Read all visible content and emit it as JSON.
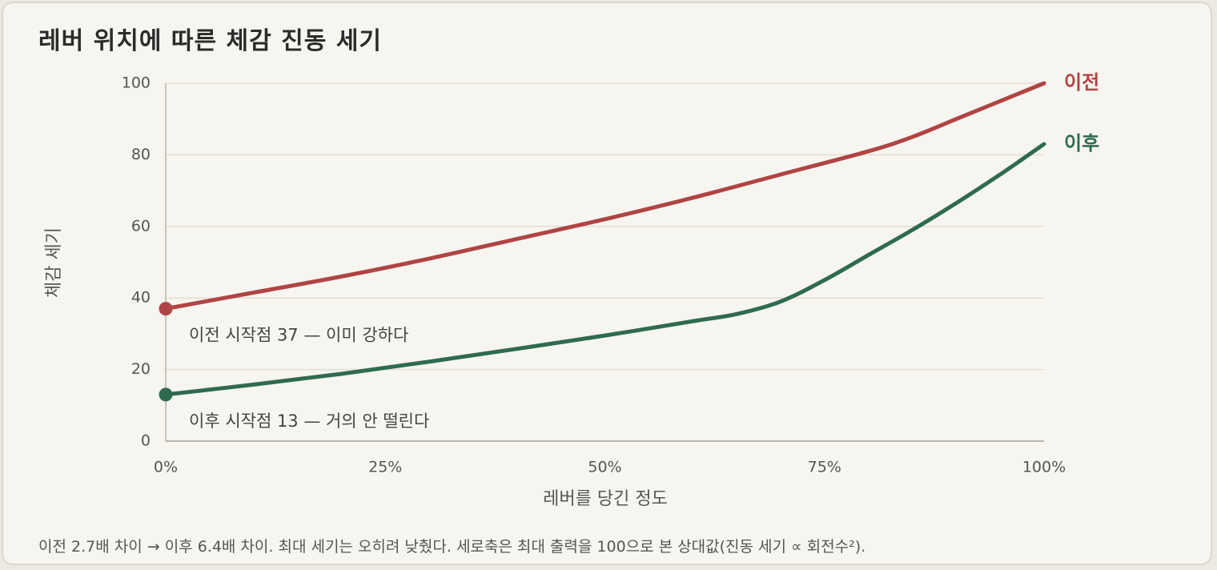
{
  "chart_data": {
    "type": "line",
    "title": "레버 위치에 따른 체감 진동 세기",
    "xlabel": "레버를 당긴 정도",
    "ylabel": "체감 세기",
    "xlim": [
      0,
      100
    ],
    "ylim": [
      0,
      100
    ],
    "x_ticks": [
      {
        "value": 0,
        "label": "0%"
      },
      {
        "value": 25,
        "label": "25%"
      },
      {
        "value": 50,
        "label": "50%"
      },
      {
        "value": 75,
        "label": "75%"
      },
      {
        "value": 100,
        "label": "100%"
      }
    ],
    "y_ticks": [
      0,
      20,
      40,
      60,
      80,
      100
    ],
    "grid": true,
    "series": [
      {
        "name": "이전",
        "color": "#b04444",
        "x": [
          0,
          10,
          20,
          30,
          40,
          50,
          60,
          70,
          80,
          85,
          90,
          95,
          100
        ],
        "y": [
          37,
          41.5,
          46,
          51,
          56.5,
          62,
          68,
          74.5,
          81,
          85,
          90,
          95,
          100
        ]
      },
      {
        "name": "이후",
        "color": "#2f6b4e",
        "x": [
          0,
          10,
          20,
          30,
          40,
          50,
          60,
          65,
          70,
          75,
          80,
          85,
          90,
          95,
          100
        ],
        "y": [
          13,
          15.8,
          18.8,
          22.2,
          25.8,
          29.5,
          33.5,
          35.5,
          39,
          45,
          52,
          59,
          66.5,
          74.5,
          83
        ]
      }
    ],
    "annotations": [
      {
        "series": "이전",
        "text": "이전 시작점 37 — 이미 강하다"
      },
      {
        "series": "이후",
        "text": "이후 시작점 13 — 거의 안 떨린다"
      }
    ]
  },
  "footnote": "이전 2.7배 차이 → 이후 6.4배 차이. 최대 세기는 오히려 낮췄다. 세로축은 최대 출력을 100으로 본 상대값(진동 세기 ∝ 회전수²)."
}
